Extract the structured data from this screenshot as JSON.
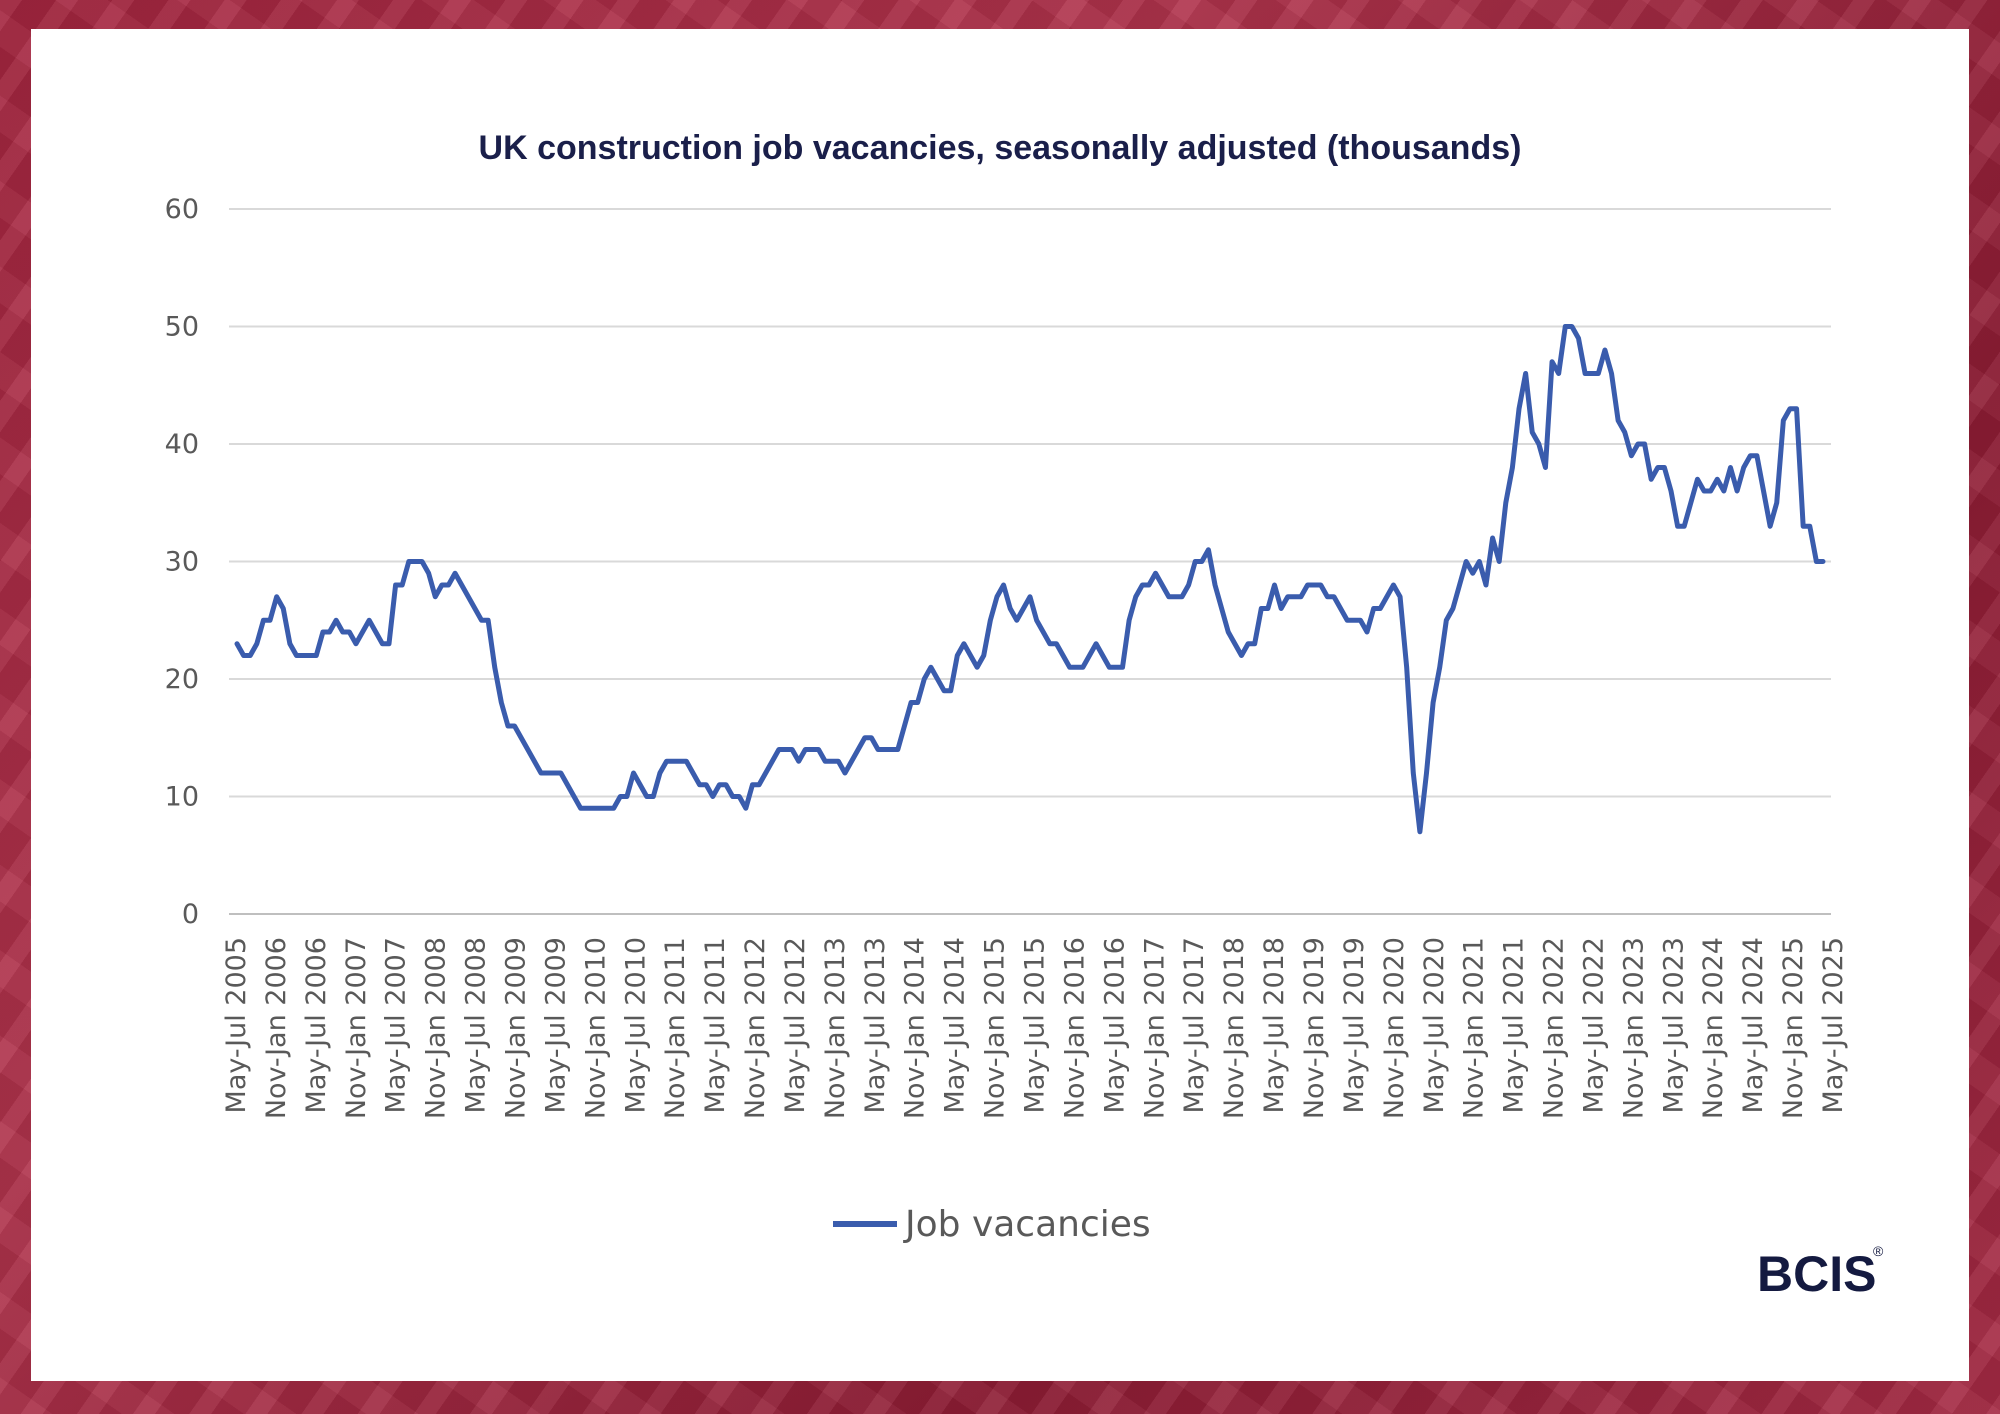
{
  "chart_data": {
    "type": "line",
    "title": "UK construction job vacancies, seasonally adjusted (thousands)",
    "xlabel": "",
    "ylabel": "",
    "ylim": [
      0,
      60
    ],
    "yticks": [
      0,
      10,
      20,
      30,
      40,
      50,
      60
    ],
    "grid": true,
    "legend_position": "bottom",
    "line_color": "#3a5cad",
    "x_tick_labels": [
      "May-Jul 2005",
      "Nov-Jan 2006",
      "May-Jul 2006",
      "Nov-Jan 2007",
      "May-Jul 2007",
      "Nov-Jan 2008",
      "May-Jul 2008",
      "Nov-Jan 2009",
      "May-Jul 2009",
      "Nov-Jan 2010",
      "May-Jul 2010",
      "Nov-Jan 2011",
      "May-Jul 2011",
      "Nov-Jan 2012",
      "May-Jul 2012",
      "Nov-Jan 2013",
      "May-Jul 2013",
      "Nov-Jan 2014",
      "May-Jul 2014",
      "Nov-Jan 2015",
      "May-Jul 2015",
      "Nov-Jan 2016",
      "May-Jul 2016",
      "Nov-Jan 2017",
      "May-Jul 2017",
      "Nov-Jan 2018",
      "May-Jul 2018",
      "Nov-Jan 2019",
      "May-Jul 2019",
      "Nov-Jan 2020",
      "May-Jul 2020",
      "Nov-Jan 2021",
      "May-Jul 2021",
      "Nov-Jan 2022",
      "May-Jul 2022",
      "Nov-Jan 2023",
      "May-Jul 2023",
      "Nov-Jan 2024",
      "May-Jul 2024",
      "Nov-Jan 2025",
      "May-Jul 2025"
    ],
    "series": [
      {
        "name": "Job vacancies",
        "values": [
          23,
          22,
          22,
          23,
          25,
          25,
          27,
          26,
          23,
          22,
          22,
          22,
          22,
          24,
          24,
          25,
          24,
          24,
          23,
          24,
          25,
          24,
          23,
          23,
          28,
          28,
          30,
          30,
          30,
          29,
          27,
          28,
          28,
          29,
          28,
          27,
          26,
          25,
          25,
          21,
          18,
          16,
          16,
          15,
          14,
          13,
          12,
          12,
          12,
          12,
          11,
          10,
          9,
          9,
          9,
          9,
          9,
          9,
          10,
          10,
          12,
          11,
          10,
          10,
          12,
          13,
          13,
          13,
          13,
          12,
          11,
          11,
          10,
          11,
          11,
          10,
          10,
          9,
          11,
          11,
          12,
          13,
          14,
          14,
          14,
          13,
          14,
          14,
          14,
          13,
          13,
          13,
          12,
          13,
          14,
          15,
          15,
          14,
          14,
          14,
          14,
          16,
          18,
          18,
          20,
          21,
          20,
          19,
          19,
          22,
          23,
          22,
          21,
          22,
          25,
          27,
          28,
          26,
          25,
          26,
          27,
          25,
          24,
          23,
          23,
          22,
          21,
          21,
          21,
          22,
          23,
          22,
          21,
          21,
          21,
          25,
          27,
          28,
          28,
          29,
          28,
          27,
          27,
          27,
          28,
          30,
          30,
          31,
          28,
          26,
          24,
          23,
          22,
          23,
          23,
          26,
          26,
          28,
          26,
          27,
          27,
          27,
          28,
          28,
          28,
          27,
          27,
          26,
          25,
          25,
          25,
          24,
          26,
          26,
          27,
          28,
          27,
          21,
          12,
          7,
          12,
          18,
          21,
          25,
          26,
          28,
          30,
          29,
          30,
          28,
          32,
          30,
          35,
          38,
          43,
          46,
          41,
          40,
          38,
          47,
          46,
          50,
          50,
          49,
          46,
          46,
          46,
          48,
          46,
          42,
          41,
          39,
          40,
          40,
          37,
          38,
          38,
          36,
          33,
          33,
          35,
          37,
          36,
          36,
          37,
          36,
          38,
          36,
          38,
          39,
          39,
          36,
          33,
          35,
          42,
          43,
          43,
          33,
          33,
          30,
          30
        ]
      }
    ]
  },
  "legend": {
    "label": "Job vacancies"
  },
  "logo": {
    "text": "BCIS",
    "mark": "®"
  }
}
